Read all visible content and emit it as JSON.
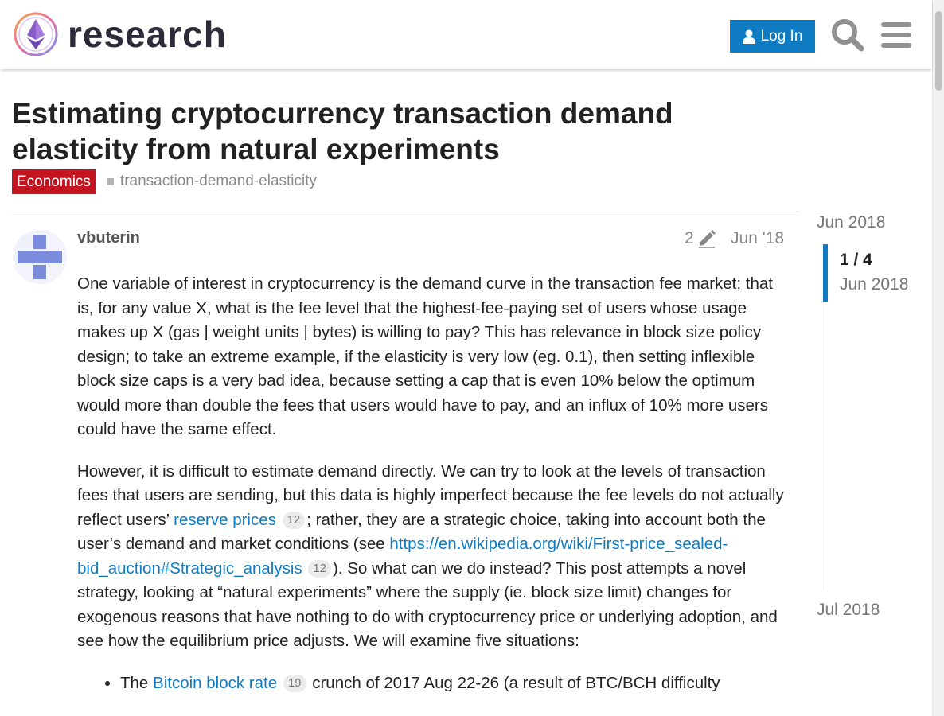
{
  "header": {
    "brand": "research",
    "login_label": "Log In"
  },
  "topic": {
    "title": "Estimating cryptocurrency transaction demand elasticity from natural experiments",
    "category": "Economics",
    "tag": "transaction-demand-elasticity"
  },
  "post": {
    "username": "vbuterin",
    "edit_count": "2",
    "date": "Jun '18",
    "p1": "One variable of interest in cryptocurrency is the demand curve in the transaction fee market; that is, for any value X, what is the fee level that the highest-fee-paying set of users whose usage makes up X (gas | weight units | bytes) is willing to pay? This has relevance in block size policy design; to take an extreme example, if the elasticity is very low (eg. 0.1), then setting inflexible block size caps is a very bad idea, because setting a cap that is even 10% below the optimum would more than double the fees that users would have to pay, and an influx of 10% more users could have the same effect.",
    "p2_a": "However, it is difficult to estimate demand directly. We can try to look at the levels of transaction fees that users are sending, but this data is highly imperfect because the fee levels do not actually reflect users’ ",
    "p2_link1": "reserve prices",
    "p2_link1_clicks": "12",
    "p2_b": "; rather, they are a strategic choice, taking into account both the user’s demand and market conditions (see ",
    "p2_link2": "https://en.wikipedia.org/wiki/First-price_sealed-bid_auction#Strategic_analysis",
    "p2_link2_clicks": "12",
    "p2_c": "). So what can we do instead? This post attempts a novel strategy, looking at “natural experiments” where the supply (ie. block size limit) changes for exogenous reasons that have nothing to do with cryptocurrency price or underlying adoption, and see how the equilibrium price adjusts. We will examine five situations:",
    "li1_a": "The ",
    "li1_link": "Bitcoin block rate",
    "li1_clicks": "19",
    "li1_b": " crunch of 2017 Aug 22-26 (a result of BTC/BCH difficulty"
  },
  "timeline": {
    "start_date": "Jun 2018",
    "position": "1 / 4",
    "position_date": "Jun 2018",
    "end_date": "Jul 2018"
  },
  "colors": {
    "accent": "#0f7bc2",
    "category": "#c4141f"
  }
}
